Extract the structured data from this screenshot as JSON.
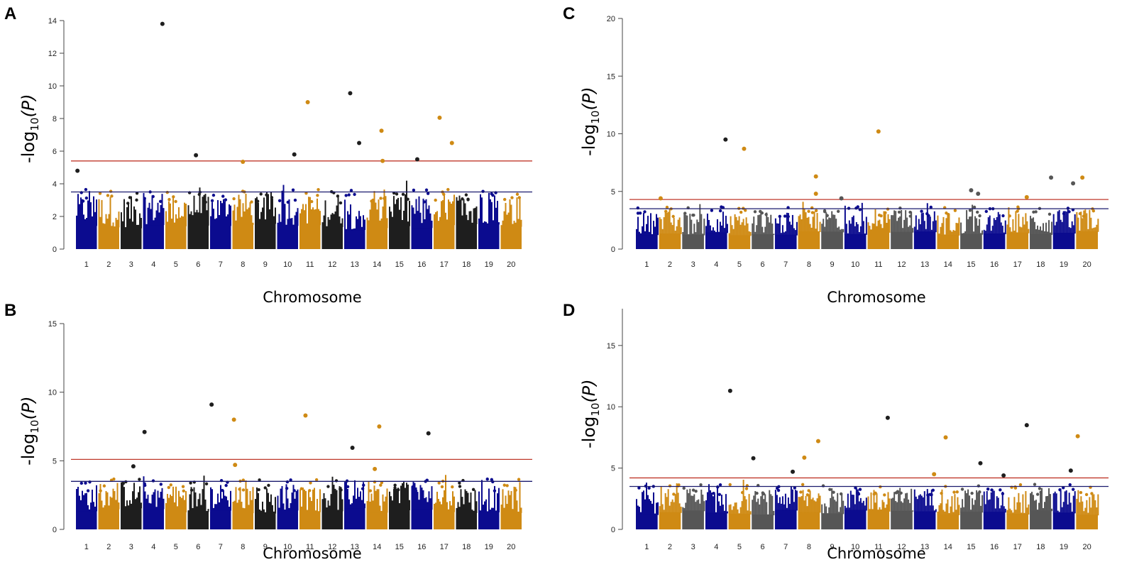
{
  "colors": {
    "navy": "#0b0b8f",
    "gold": "#cf8a14",
    "black": "#1e1e1e",
    "gray": "#565656",
    "red_line": "#c0392b",
    "blue_line": "#1a1a6e"
  },
  "chart_data": [
    {
      "panel": "A",
      "type": "scatter",
      "title": "",
      "xlabel": "Chromosome",
      "ylabel_prefix": "-log",
      "ylabel_sub": "10",
      "ylabel_suffix": "(P)",
      "ylim": [
        0,
        14
      ],
      "yticks": [
        0,
        2,
        4,
        6,
        8,
        10,
        12,
        14
      ],
      "categories": [
        "1",
        "2",
        "3",
        "4",
        "5",
        "6",
        "7",
        "8",
        "9",
        "10",
        "11",
        "12",
        "13",
        "14",
        "15",
        "16",
        "17",
        "18",
        "19",
        "20"
      ],
      "chromosome_colors": [
        "navy",
        "gold",
        "black",
        "navy",
        "gold",
        "black",
        "navy",
        "gold",
        "black",
        "navy",
        "gold",
        "black",
        "navy",
        "gold",
        "black",
        "navy",
        "gold",
        "black",
        "navy",
        "gold"
      ],
      "genomewide_threshold": 5.4,
      "suggestive_threshold": 3.5,
      "significant_points": [
        {
          "chr": 1,
          "pos": 0.1,
          "y": 4.8,
          "color": "black"
        },
        {
          "chr": 4,
          "pos": 0.9,
          "y": 13.8,
          "color": "black"
        },
        {
          "chr": 6,
          "pos": 0.4,
          "y": 5.75,
          "color": "black"
        },
        {
          "chr": 8,
          "pos": 0.5,
          "y": 5.35,
          "color": "gold"
        },
        {
          "chr": 10,
          "pos": 0.8,
          "y": 5.8,
          "color": "black"
        },
        {
          "chr": 11,
          "pos": 0.4,
          "y": 9.0,
          "color": "gold"
        },
        {
          "chr": 13,
          "pos": 0.3,
          "y": 9.55,
          "color": "black"
        },
        {
          "chr": 13,
          "pos": 0.7,
          "y": 6.5,
          "color": "black"
        },
        {
          "chr": 14,
          "pos": 0.7,
          "y": 7.25,
          "color": "gold"
        },
        {
          "chr": 14,
          "pos": 0.75,
          "y": 5.4,
          "color": "gold"
        },
        {
          "chr": 16,
          "pos": 0.3,
          "y": 5.5,
          "color": "black"
        },
        {
          "chr": 17,
          "pos": 0.3,
          "y": 8.05,
          "color": "gold"
        },
        {
          "chr": 17,
          "pos": 0.85,
          "y": 6.5,
          "color": "gold"
        }
      ]
    },
    {
      "panel": "B",
      "type": "scatter",
      "title": "",
      "xlabel": "Chromosome",
      "ylabel_prefix": "-log",
      "ylabel_sub": "10",
      "ylabel_suffix": "(P)",
      "ylim": [
        0,
        15
      ],
      "yticks": [
        0,
        5,
        10,
        15
      ],
      "categories": [
        "1",
        "2",
        "3",
        "4",
        "5",
        "6",
        "7",
        "8",
        "9",
        "10",
        "11",
        "12",
        "13",
        "14",
        "15",
        "16",
        "17",
        "18",
        "19",
        "20"
      ],
      "chromosome_colors": [
        "navy",
        "gold",
        "black",
        "navy",
        "gold",
        "black",
        "navy",
        "gold",
        "black",
        "navy",
        "gold",
        "black",
        "navy",
        "gold",
        "black",
        "navy",
        "gold",
        "black",
        "navy",
        "gold"
      ],
      "genomewide_threshold": 5.1,
      "suggestive_threshold": 3.5,
      "significant_points": [
        {
          "chr": 3,
          "pos": 0.6,
          "y": 4.6,
          "color": "black"
        },
        {
          "chr": 4,
          "pos": 0.1,
          "y": 7.1,
          "color": "black"
        },
        {
          "chr": 7,
          "pos": 0.1,
          "y": 9.1,
          "color": "black"
        },
        {
          "chr": 8,
          "pos": 0.1,
          "y": 8.0,
          "color": "gold"
        },
        {
          "chr": 8,
          "pos": 0.15,
          "y": 4.7,
          "color": "gold"
        },
        {
          "chr": 11,
          "pos": 0.3,
          "y": 8.3,
          "color": "gold"
        },
        {
          "chr": 13,
          "pos": 0.4,
          "y": 5.95,
          "color": "black"
        },
        {
          "chr": 14,
          "pos": 0.6,
          "y": 7.5,
          "color": "gold"
        },
        {
          "chr": 14,
          "pos": 0.4,
          "y": 4.4,
          "color": "gold"
        },
        {
          "chr": 16,
          "pos": 0.8,
          "y": 7.0,
          "color": "black"
        }
      ]
    },
    {
      "panel": "C",
      "type": "scatter",
      "title": "",
      "xlabel": "Chromosome",
      "ylabel_prefix": "-log",
      "ylabel_sub": "10",
      "ylabel_suffix": "(P)",
      "ylim": [
        0,
        20
      ],
      "yticks": [
        0,
        5,
        10,
        15,
        20
      ],
      "categories": [
        "1",
        "2",
        "3",
        "4",
        "5",
        "6",
        "7",
        "8",
        "9",
        "10",
        "11",
        "12",
        "13",
        "14",
        "15",
        "16",
        "17",
        "18",
        "19",
        "20"
      ],
      "chromosome_colors": [
        "navy",
        "gold",
        "gray",
        "navy",
        "gold",
        "gray",
        "navy",
        "gold",
        "gray",
        "navy",
        "gold",
        "gray",
        "navy",
        "gold",
        "gray",
        "navy",
        "gold",
        "gray",
        "navy",
        "gold"
      ],
      "genomewide_threshold": 4.3,
      "suggestive_threshold": 3.5,
      "significant_points": [
        {
          "chr": 2,
          "pos": 0.1,
          "y": 4.4,
          "color": "gold"
        },
        {
          "chr": 4,
          "pos": 0.9,
          "y": 9.5,
          "color": "black"
        },
        {
          "chr": 5,
          "pos": 0.7,
          "y": 8.7,
          "color": "gold"
        },
        {
          "chr": 8,
          "pos": 0.8,
          "y": 6.3,
          "color": "gold"
        },
        {
          "chr": 8,
          "pos": 0.8,
          "y": 4.8,
          "color": "gold"
        },
        {
          "chr": 9,
          "pos": 0.9,
          "y": 4.4,
          "color": "gray"
        },
        {
          "chr": 11,
          "pos": 0.5,
          "y": 10.2,
          "color": "gold"
        },
        {
          "chr": 15,
          "pos": 0.5,
          "y": 5.1,
          "color": "gray"
        },
        {
          "chr": 15,
          "pos": 0.8,
          "y": 4.8,
          "color": "gray"
        },
        {
          "chr": 17,
          "pos": 0.9,
          "y": 4.5,
          "color": "gold"
        },
        {
          "chr": 18,
          "pos": 0.95,
          "y": 6.2,
          "color": "gray"
        },
        {
          "chr": 19,
          "pos": 0.9,
          "y": 5.7,
          "color": "gray"
        },
        {
          "chr": 20,
          "pos": 0.3,
          "y": 6.2,
          "color": "gold"
        }
      ]
    },
    {
      "panel": "D",
      "type": "scatter",
      "title": "",
      "xlabel": "Chromosome",
      "ylabel_prefix": "-log",
      "ylabel_sub": "10",
      "ylabel_suffix": "(P)",
      "ylim": [
        0,
        18
      ],
      "yticks": [
        0,
        5,
        10,
        15
      ],
      "categories": [
        "1",
        "2",
        "3",
        "4",
        "5",
        "6",
        "7",
        "8",
        "9",
        "10",
        "11",
        "12",
        "13",
        "14",
        "15",
        "16",
        "17",
        "18",
        "19",
        "20"
      ],
      "chromosome_colors": [
        "navy",
        "gold",
        "gray",
        "navy",
        "gold",
        "gray",
        "navy",
        "gold",
        "gray",
        "navy",
        "gold",
        "gray",
        "navy",
        "gold",
        "gray",
        "navy",
        "gold",
        "gray",
        "navy",
        "gold"
      ],
      "genomewide_threshold": 4.2,
      "suggestive_threshold": 3.5,
      "significant_points": [
        {
          "chr": 5,
          "pos": 0.1,
          "y": 11.3,
          "color": "black"
        },
        {
          "chr": 6,
          "pos": 0.1,
          "y": 5.8,
          "color": "black"
        },
        {
          "chr": 7,
          "pos": 0.8,
          "y": 4.7,
          "color": "black"
        },
        {
          "chr": 8,
          "pos": 0.3,
          "y": 5.85,
          "color": "gold"
        },
        {
          "chr": 8,
          "pos": 0.9,
          "y": 7.2,
          "color": "gold"
        },
        {
          "chr": 11,
          "pos": 0.9,
          "y": 9.1,
          "color": "black"
        },
        {
          "chr": 13,
          "pos": 0.9,
          "y": 4.5,
          "color": "gold"
        },
        {
          "chr": 14,
          "pos": 0.4,
          "y": 7.5,
          "color": "gold"
        },
        {
          "chr": 15,
          "pos": 0.9,
          "y": 5.4,
          "color": "black"
        },
        {
          "chr": 16,
          "pos": 0.9,
          "y": 4.4,
          "color": "black"
        },
        {
          "chr": 17,
          "pos": 0.9,
          "y": 8.5,
          "color": "black"
        },
        {
          "chr": 19,
          "pos": 0.8,
          "y": 4.8,
          "color": "black"
        },
        {
          "chr": 20,
          "pos": 0.1,
          "y": 7.6,
          "color": "gold"
        }
      ]
    }
  ]
}
